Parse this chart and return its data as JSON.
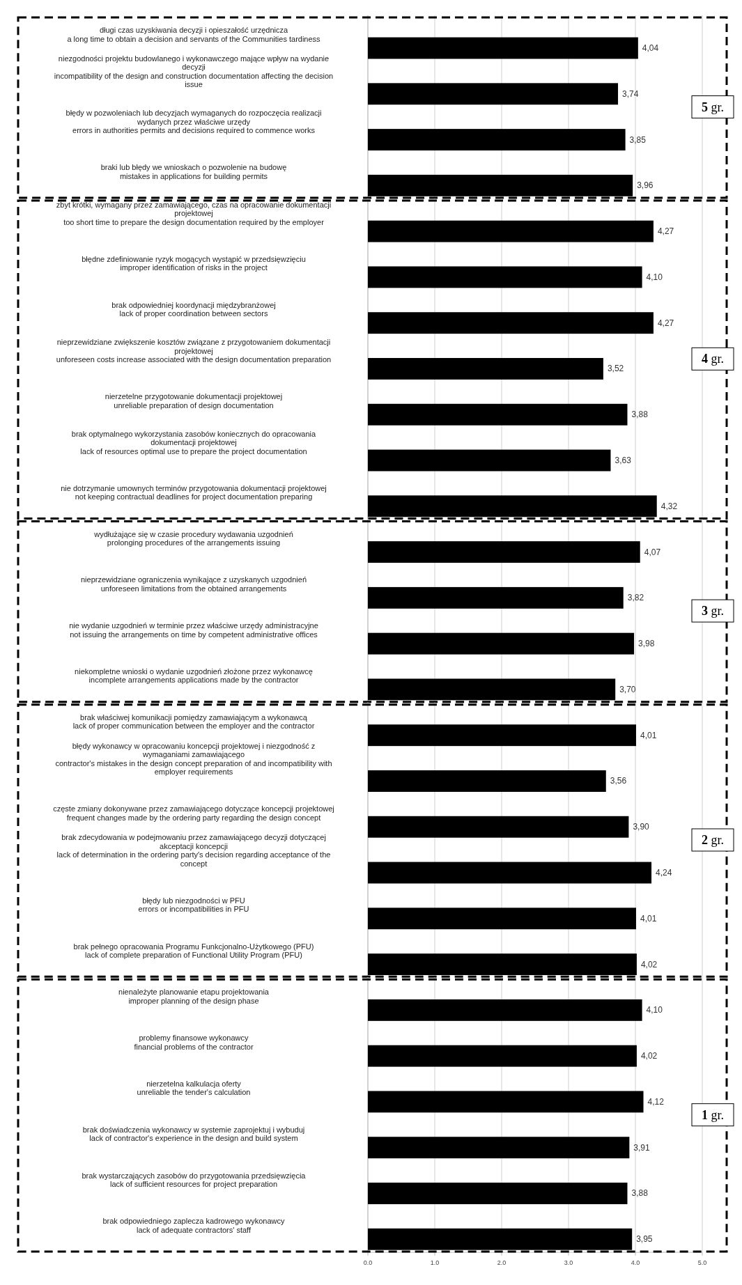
{
  "chart_data": [
    {
      "type": "bar",
      "orientation": "horizontal",
      "annotations": [
        "5 gr."
      ],
      "color": "#000000",
      "xlim": [
        0,
        5
      ],
      "grid": "x",
      "tick_labels": "y",
      "categories": [
        "długi czas uzyskiwania decyzji i opieszałość urzędnicza\na long time to obtain a decision and servants of the Communities tardiness",
        "niezgodności projektu budowlanego i wykonawczego mające wpływ na wydanie\ndecyzji\nincompatibility of the design and construction documentation affecting the decision\nissue",
        "błędy w pozwoleniach lub decyzjach wymaganych do rozpoczęcia realizacji\nwydanych przez właściwe urzędy\nerrors in authorities permits and decisions required to commence works",
        "braki lub błędy we wnioskach o pozwolenie na budowę\nmistakes in applications for building permits"
      ],
      "values": [
        4.04,
        3.74,
        3.85,
        3.96
      ],
      "value_labels": [
        "4,04",
        "3,74",
        "3,85",
        "3,96"
      ]
    },
    {
      "type": "bar",
      "orientation": "horizontal",
      "annotations": [
        "4 gr."
      ],
      "color": "#000000",
      "xlim": [
        0,
        5
      ],
      "grid": "x",
      "tick_labels": "y",
      "categories": [
        "zbyt krótki, wymagany przez zamawiającego, czas na opracowanie dokumentacji\nprojektowej\ntoo short time to prepare the design documentation required by the employer",
        "błędne zdefiniowanie ryzyk mogących wystąpić w przedsięwzięciu\nimproper identification of risks in the project",
        "brak odpowiedniej koordynacji międzybranżowej\nlack of proper coordination between sectors",
        "nieprzewidziane zwiększenie kosztów związane z przygotowaniem dokumentacji\nprojektowej\nunforeseen costs increase associated with the design documentation preparation",
        "nierzetelne przygotowanie dokumentacji projektowej\nunreliable preparation of design documentation",
        "brak optymalnego wykorzystania zasobów koniecznych do opracowania\ndokumentacji projektowej\nlack of resources optimal use to prepare the project documentation",
        "nie dotrzymanie umownych terminów przygotowania dokumentacji projektowej\nnot keeping contractual deadlines for project documentation preparing"
      ],
      "values": [
        4.27,
        4.1,
        4.27,
        3.52,
        3.88,
        3.63,
        4.32
      ],
      "value_labels": [
        "4,27",
        "4,10",
        "4,27",
        "3,52",
        "3,88",
        "3,63",
        "4,32"
      ]
    },
    {
      "type": "bar",
      "orientation": "horizontal",
      "annotations": [
        "3 gr."
      ],
      "color": "#000000",
      "xlim": [
        0,
        5
      ],
      "grid": "x",
      "tick_labels": "y",
      "categories": [
        "wydłużające się w czasie procedury wydawania uzgodnień\nprolonging procedures of the arrangements issuing",
        "nieprzewidziane ograniczenia wynikające z uzyskanych uzgodnień\nunforeseen limitations from the obtained arrangements",
        "nie wydanie uzgodnień w terminie przez właściwe urzędy administracyjne\nnot issuing the arrangements on time by competent administrative offices",
        "niekompletne wnioski o wydanie uzgodnień złożone przez wykonawcę\nincomplete arrangements applications made by the contractor"
      ],
      "values": [
        4.07,
        3.82,
        3.98,
        3.7
      ],
      "value_labels": [
        "4,07",
        "3,82",
        "3,98",
        "3,70"
      ]
    },
    {
      "type": "bar",
      "orientation": "horizontal",
      "annotations": [
        "2 gr."
      ],
      "color": "#000000",
      "xlim": [
        0,
        5
      ],
      "grid": "x",
      "tick_labels": "y",
      "categories": [
        "brak właściwej komunikacji pomiędzy zamawiającym a wykonawcą\nlack of proper communication between the employer and the contractor",
        "błędy wykonawcy w opracowaniu koncepcji projektowej i niezgodność z\nwymaganiami zamawiającego\ncontractor's mistakes in the design concept preparation of and incompatibility with\nemployer requirements",
        "częste zmiany dokonywane przez zamawiającego dotyczące koncepcji projektowej\nfrequent changes made by the ordering party regarding the design concept",
        "brak zdecydowania w podejmowaniu przez zamawiającego decyzji dotyczącej\nakceptacji koncepcji\nlack of determination in the ordering party's decision regarding acceptance of the\nconcept",
        "błędy lub niezgodności w PFU\nerrors or incompatibilities in PFU",
        "brak pełnego opracowania Programu Funkcjonalno-Użytkowego (PFU)\nlack of complete preparation of Functional Utility Program (PFU)"
      ],
      "values": [
        4.01,
        3.56,
        3.9,
        4.24,
        4.01,
        4.02
      ],
      "value_labels": [
        "4,01",
        "3,56",
        "3,90",
        "4,24",
        "4,01",
        "4,02"
      ]
    },
    {
      "type": "bar",
      "orientation": "horizontal",
      "annotations": [
        "1 gr."
      ],
      "color": "#000000",
      "xlim": [
        0,
        5
      ],
      "grid": "x",
      "xticks": [
        {
          "value": 0,
          "label": "0.0"
        },
        {
          "value": 1,
          "label": "1.0"
        },
        {
          "value": 2,
          "label": "2.0"
        },
        {
          "value": 3,
          "label": "3.0"
        },
        {
          "value": 4,
          "label": "4.0"
        },
        {
          "value": 5,
          "label": "5.0"
        }
      ],
      "categories": [
        "nienależyte planowanie etapu projektowania\nimproper planning of the design phase",
        "problemy finansowe wykonawcy\nfinancial problems of the contractor",
        "nierzetelna kalkulacja oferty\nunreliable the tender's calculation",
        "brak doświadczenia wykonawcy w systemie zaprojektuj i wybuduj\nlack of contractor's experience in the design and build system",
        "brak wystarczających zasobów do przygotowania przedsięwzięcia\nlack of sufficient resources for project preparation",
        "brak odpowiedniego zaplecza kadrowego wykonawcy\nlack of adequate contractors' staff"
      ],
      "values": [
        4.1,
        4.02,
        4.12,
        3.91,
        3.88,
        3.95
      ],
      "value_labels": [
        "4,10",
        "4,02",
        "4,12",
        "3,91",
        "3,88",
        "3,95"
      ]
    }
  ]
}
